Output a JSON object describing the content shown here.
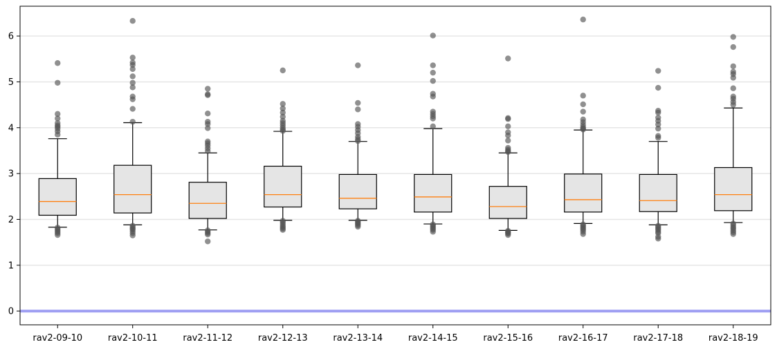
{
  "chart_data": {
    "type": "boxplot",
    "title": "",
    "xlabel": "",
    "ylabel": "",
    "ylim": [
      -0.3,
      6.65
    ],
    "yticks": [
      0,
      1,
      2,
      3,
      4,
      5,
      6
    ],
    "grid": "horizontal",
    "reference_line": {
      "y": 0,
      "color": "#9f9ff2"
    },
    "colors": {
      "box_fill": "#e5e5e5",
      "median": "#ff7f0e",
      "outlier": "#555555",
      "axis": "#000000",
      "grid": "#e6e6e6"
    },
    "categories": [
      "rav2-09-10",
      "rav2-10-11",
      "rav2-11-12",
      "rav2-12-13",
      "rav2-13-14",
      "rav2-14-15",
      "rav2-15-16",
      "rav2-16-17",
      "rav2-17-18",
      "rav2-18-19"
    ],
    "boxes": [
      {
        "label": "rav2-09-10",
        "whisker_low": 1.83,
        "q1": 2.09,
        "median": 2.39,
        "q3": 2.89,
        "whisker_high": 3.76,
        "outliers": [
          5.41,
          4.98,
          4.3,
          4.2,
          4.1,
          4.05,
          4.02,
          3.98,
          3.92,
          3.85,
          1.82,
          1.79,
          1.76,
          1.73,
          1.7,
          1.66
        ]
      },
      {
        "label": "rav2-10-11",
        "whisker_low": 1.88,
        "q1": 2.14,
        "median": 2.54,
        "q3": 3.18,
        "whisker_high": 4.11,
        "outliers": [
          6.33,
          5.53,
          5.42,
          5.37,
          5.28,
          5.12,
          4.98,
          4.88,
          4.68,
          4.62,
          4.41,
          4.13,
          1.86,
          1.83,
          1.8,
          1.78,
          1.74,
          1.7,
          1.65
        ]
      },
      {
        "label": "rav2-11-12",
        "whisker_low": 1.77,
        "q1": 2.02,
        "median": 2.35,
        "q3": 2.81,
        "whisker_high": 3.45,
        "outliers": [
          4.85,
          4.73,
          4.71,
          4.31,
          4.13,
          4.08,
          3.99,
          3.7,
          3.66,
          3.61,
          3.55,
          3.49,
          1.76,
          1.73,
          1.7,
          1.67,
          1.52
        ]
      },
      {
        "label": "rav2-12-13",
        "whisker_low": 1.98,
        "q1": 2.27,
        "median": 2.54,
        "q3": 3.16,
        "whisker_high": 3.92,
        "outliers": [
          5.25,
          4.52,
          4.42,
          4.33,
          4.24,
          4.15,
          4.1,
          4.05,
          4.0,
          3.96,
          3.93,
          1.97,
          1.94,
          1.9,
          1.86,
          1.83,
          1.8,
          1.77
        ]
      },
      {
        "label": "rav2-13-14",
        "whisker_low": 1.98,
        "q1": 2.23,
        "median": 2.46,
        "q3": 2.98,
        "whisker_high": 3.7,
        "outliers": [
          5.36,
          4.54,
          4.4,
          4.08,
          4.02,
          3.95,
          3.88,
          3.8,
          3.75,
          3.71,
          1.97,
          1.95,
          1.92,
          1.9,
          1.87,
          1.84
        ]
      },
      {
        "label": "rav2-14-15",
        "whisker_low": 1.9,
        "q1": 2.16,
        "median": 2.49,
        "q3": 2.98,
        "whisker_high": 3.98,
        "outliers": [
          6.01,
          5.36,
          5.2,
          5.02,
          4.74,
          4.68,
          4.35,
          4.3,
          4.25,
          4.2,
          4.03,
          1.89,
          1.86,
          1.83,
          1.8,
          1.77,
          1.73
        ]
      },
      {
        "label": "rav2-15-16",
        "whisker_low": 1.76,
        "q1": 2.02,
        "median": 2.28,
        "q3": 2.72,
        "whisker_high": 3.45,
        "outliers": [
          5.51,
          4.21,
          4.19,
          4.03,
          3.9,
          3.83,
          3.72,
          3.56,
          3.52,
          3.49,
          3.47,
          1.75,
          1.73,
          1.71,
          1.69,
          1.66
        ]
      },
      {
        "label": "rav2-16-17",
        "whisker_low": 1.91,
        "q1": 2.16,
        "median": 2.43,
        "q3": 2.99,
        "whisker_high": 3.95,
        "outliers": [
          6.36,
          4.7,
          4.51,
          4.35,
          4.18,
          4.12,
          4.06,
          4.01,
          3.98,
          3.96,
          1.89,
          1.86,
          1.83,
          1.8,
          1.77,
          1.73,
          1.68
        ]
      },
      {
        "label": "rav2-17-18",
        "whisker_low": 1.88,
        "q1": 2.17,
        "median": 2.41,
        "q3": 2.98,
        "whisker_high": 3.7,
        "outliers": [
          5.24,
          4.87,
          4.37,
          4.33,
          4.22,
          4.15,
          4.07,
          3.98,
          3.82,
          3.78,
          1.86,
          1.83,
          1.8,
          1.77,
          1.73,
          1.7,
          1.62,
          1.58
        ]
      },
      {
        "label": "rav2-18-19",
        "whisker_low": 1.93,
        "q1": 2.19,
        "median": 2.54,
        "q3": 3.13,
        "whisker_high": 4.43,
        "outliers": [
          5.98,
          5.76,
          5.34,
          5.22,
          5.17,
          5.09,
          4.86,
          4.68,
          4.63,
          4.56,
          4.5,
          1.91,
          1.87,
          1.83,
          1.8,
          1.76,
          1.72,
          1.68
        ]
      }
    ]
  }
}
